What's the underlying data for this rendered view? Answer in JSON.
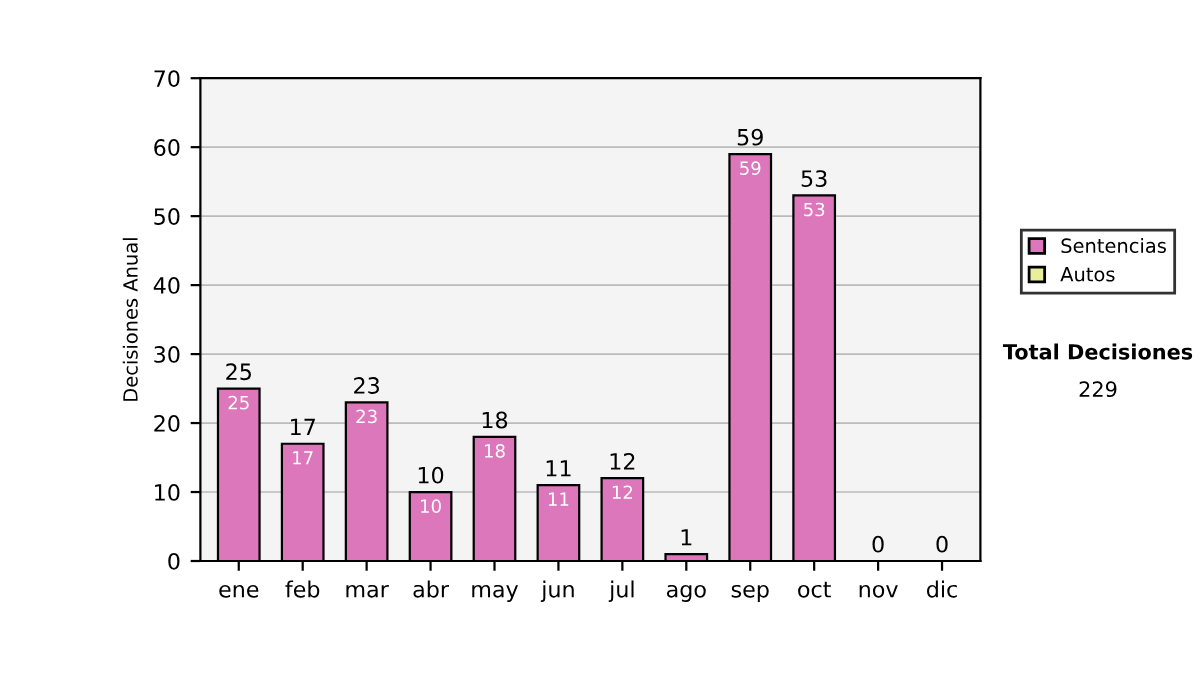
{
  "chart_data": {
    "type": "bar",
    "ylabel": "Decisiones Anual",
    "categories": [
      "ene",
      "feb",
      "mar",
      "abr",
      "may",
      "jun",
      "jul",
      "ago",
      "sep",
      "oct",
      "nov",
      "dic"
    ],
    "stacked": true,
    "series": [
      {
        "name": "Sentencias",
        "color": "#dd77bb",
        "values": [
          25,
          17,
          23,
          10,
          18,
          11,
          12,
          1,
          59,
          53,
          0,
          0
        ],
        "value_labels": [
          "25",
          "17",
          "23",
          "10",
          "18",
          "11",
          "12",
          null,
          "59",
          "53",
          null,
          null
        ]
      },
      {
        "name": "Autos",
        "color": "#e8ee99",
        "values": [
          0,
          0,
          0,
          0,
          0,
          0,
          0,
          0,
          0,
          0,
          0,
          0
        ]
      }
    ],
    "totals": [
      "25",
      "17",
      "23",
      "10",
      "18",
      "11",
      "12",
      "1",
      "59",
      "53",
      "0",
      "0"
    ],
    "ylim": [
      0,
      70
    ],
    "yticks": [
      0,
      10,
      20,
      30,
      40,
      50,
      60,
      70
    ],
    "grid": "y",
    "legend": "right",
    "annotations": [
      "Total Decisiones",
      "229"
    ]
  }
}
